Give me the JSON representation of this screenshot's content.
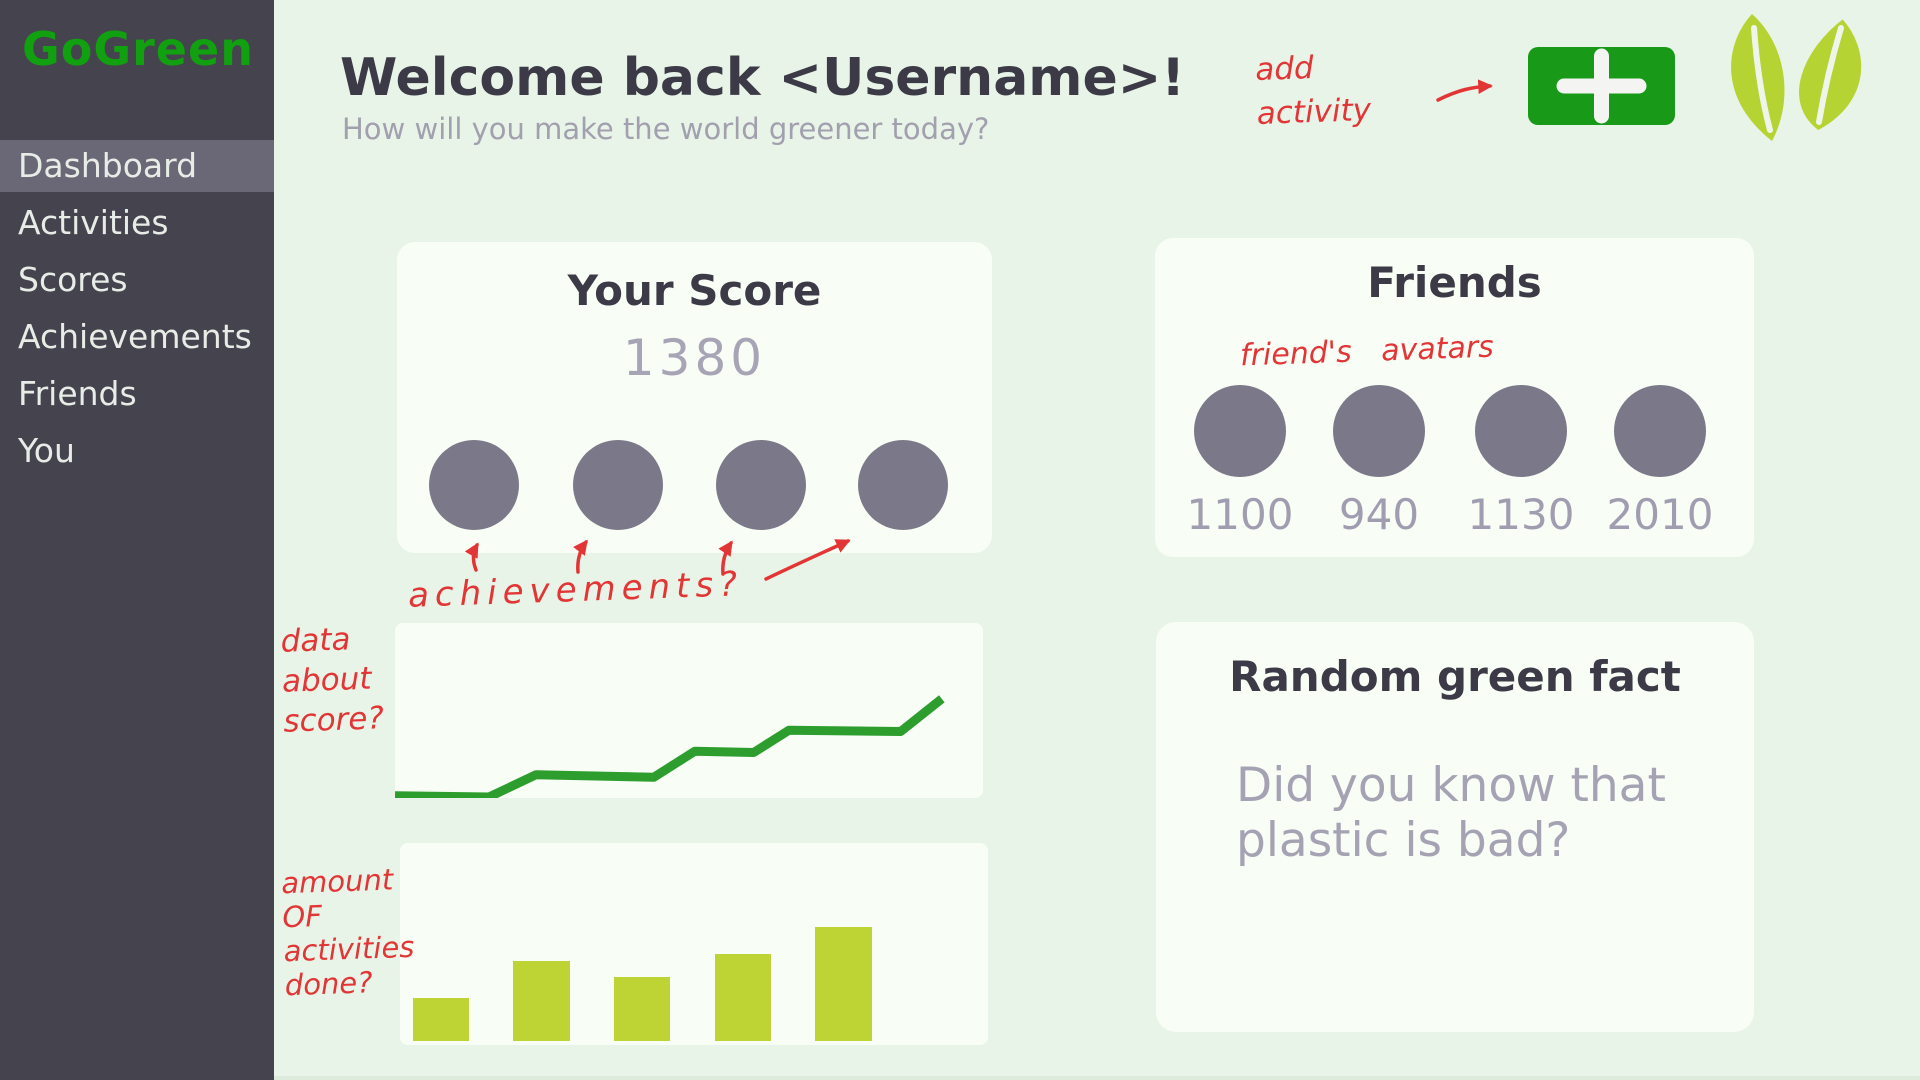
{
  "app": {
    "logo_text": "GoGreen"
  },
  "sidebar": {
    "items": [
      {
        "label": "Dashboard",
        "active": true
      },
      {
        "label": "Activities",
        "active": false
      },
      {
        "label": "Scores",
        "active": false
      },
      {
        "label": "Achievements",
        "active": false
      },
      {
        "label": "Friends",
        "active": false
      },
      {
        "label": "You",
        "active": false
      }
    ]
  },
  "header": {
    "title": "Welcome back <Username>!",
    "subtitle": "How will you make the world greener today?"
  },
  "score_card": {
    "title": "Your Score",
    "score": "1380",
    "achievement_slots": 4
  },
  "friends_card": {
    "title": "Friends",
    "friend_scores": [
      "1100",
      "940",
      "1130",
      "2010"
    ]
  },
  "fact_card": {
    "title": "Random green fact",
    "body": "Did you know that plastic is bad?"
  },
  "annotations": {
    "add_activity_line1": "add",
    "add_activity_line2": "activity",
    "friends_avatars": "friend's avatars",
    "achievements": "achievements?",
    "score_chart_line1": "data",
    "score_chart_line2": "about",
    "score_chart_line3": "score?",
    "bar_chart_line1": "amount",
    "bar_chart_line2": "OF",
    "bar_chart_line3": "activities",
    "bar_chart_line4": "done?"
  },
  "icons": {
    "add_button": "plus-icon",
    "logo": "leaf-icon"
  },
  "chart_data": [
    {
      "type": "line",
      "title": "score over time (unlabeled sparkline)",
      "x_pct": [
        0,
        16,
        24,
        44,
        51,
        61,
        67,
        86,
        93
      ],
      "values": [
        1,
        0,
        17,
        15,
        35,
        34,
        51,
        50,
        75
      ],
      "ylim": [
        0,
        100
      ],
      "xlabel": "",
      "ylabel": "",
      "grid": false,
      "axes_visible": false,
      "color": "#2d9e2d"
    },
    {
      "type": "bar",
      "title": "amount of activities done (unlabeled)",
      "values": [
        38,
        70,
        56,
        76,
        100
      ],
      "x_pct": [
        2.2,
        19.3,
        36.4,
        53.5,
        70.6
      ],
      "bar_width_pct": 9.6,
      "ylim": [
        0,
        100
      ],
      "xlabel": "",
      "ylabel": "",
      "grid": false,
      "axes_visible": false,
      "color": "#bdd434"
    }
  ],
  "colors": {
    "sidebar_bg": "#45434e",
    "sidebar_active_bg": "#6a6876",
    "sidebar_text": "#e7ece7",
    "logo_green": "#10a010",
    "main_bg": "#e9f4e8",
    "card_bg": "#f8fdf6",
    "heading_text": "#3b3a46",
    "muted_text": "#a2a0ae",
    "score_value_text": "#a7a4b6",
    "avatar_gray": "#7b7989",
    "friend_score_text": "#a09db0",
    "button_green": "#189a18",
    "leaf_green": "#b6d334",
    "annotation_red": "#e23535",
    "line_green": "#2d9e2d",
    "bar_green": "#bdd434"
  }
}
